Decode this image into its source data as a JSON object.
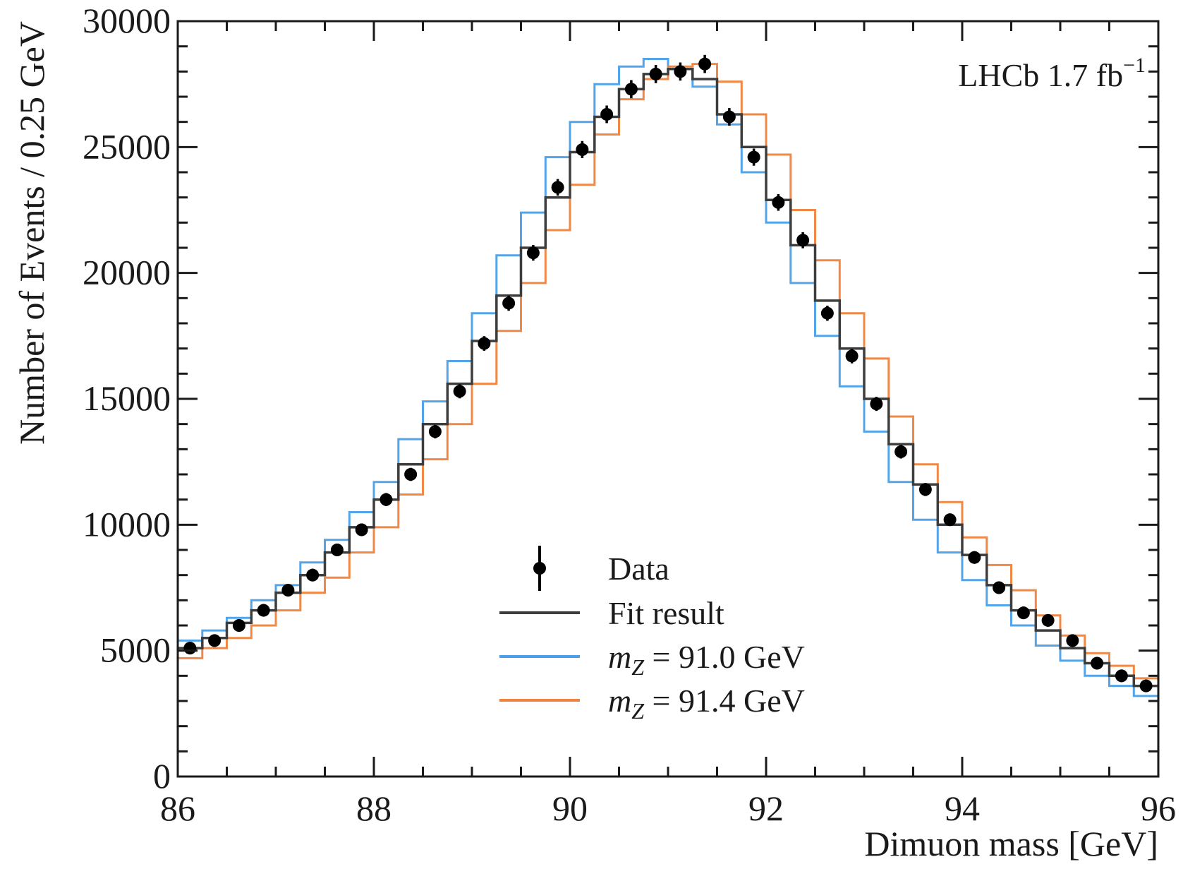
{
  "chart_data": {
    "type": "line",
    "xlabel": "Dimuon mass [GeV]",
    "ylabel": "Number of Events / 0.25 GeV",
    "xlim": [
      86,
      96
    ],
    "ylim": [
      0,
      30000
    ],
    "x_ticks": [
      86,
      88,
      90,
      92,
      94,
      96
    ],
    "y_ticks": [
      0,
      5000,
      10000,
      15000,
      20000,
      25000,
      30000
    ],
    "bin_width": 0.25,
    "grid": false,
    "legend_position": "bottom-center",
    "annotation": {
      "text": "LHCb 1.7 fb",
      "superscript": "−1"
    },
    "legend": [
      {
        "label": "Data",
        "style": "points"
      },
      {
        "label": "Fit result",
        "style": "line"
      },
      {
        "label_italic": "m",
        "label_sub": "Z",
        "label_rest": " = 91.0 GeV",
        "style": "line"
      },
      {
        "label_italic": "m",
        "label_sub": "Z",
        "label_rest": " = 91.4 GeV",
        "style": "line"
      }
    ],
    "bin_edges": [
      86,
      86.25,
      86.5,
      86.75,
      87,
      87.25,
      87.5,
      87.75,
      88,
      88.25,
      88.5,
      88.75,
      89,
      89.25,
      89.5,
      89.75,
      90,
      90.25,
      90.5,
      90.75,
      91,
      91.25,
      91.5,
      91.75,
      92,
      92.25,
      92.5,
      92.75,
      93,
      93.25,
      93.5,
      93.75,
      94,
      94.25,
      94.5,
      94.75,
      95,
      95.25,
      95.5,
      95.75,
      96
    ],
    "series": [
      {
        "name": "Data",
        "type": "points",
        "color": "#000000",
        "x": [
          86.125,
          86.375,
          86.625,
          86.875,
          87.125,
          87.375,
          87.625,
          87.875,
          88.125,
          88.375,
          88.625,
          88.875,
          89.125,
          89.375,
          89.625,
          89.875,
          90.125,
          90.375,
          90.625,
          90.875,
          91.125,
          91.375,
          91.625,
          91.875,
          92.125,
          92.375,
          92.625,
          92.875,
          93.125,
          93.375,
          93.625,
          93.875,
          94.125,
          94.375,
          94.625,
          94.875,
          95.125,
          95.375,
          95.625,
          95.875
        ],
        "values": [
          5100,
          5400,
          6000,
          6600,
          7400,
          8000,
          9000,
          9800,
          11000,
          12000,
          13700,
          15300,
          17200,
          18800,
          20800,
          23400,
          24900,
          26300,
          27300,
          27900,
          28000,
          28300,
          26200,
          24600,
          22800,
          21300,
          18400,
          16700,
          14800,
          12900,
          11400,
          10200,
          8700,
          7500,
          6500,
          6200,
          5400,
          4500,
          4000,
          3600
        ],
        "errors": [
          250,
          250,
          250,
          250,
          250,
          250,
          250,
          250,
          260,
          260,
          270,
          280,
          290,
          300,
          310,
          330,
          340,
          350,
          360,
          360,
          360,
          360,
          350,
          340,
          330,
          320,
          300,
          290,
          280,
          270,
          260,
          250,
          250,
          250,
          250,
          250,
          250,
          250,
          250,
          250
        ]
      },
      {
        "name": "Fit result",
        "type": "step",
        "color": "#3d3d3d",
        "values": [
          5100,
          5500,
          6100,
          6600,
          7300,
          8000,
          8900,
          9900,
          11000,
          12400,
          14000,
          15600,
          17300,
          19100,
          21000,
          23000,
          24800,
          26200,
          27300,
          27900,
          28100,
          27700,
          26300,
          25000,
          22900,
          21100,
          18900,
          17000,
          15000,
          13200,
          11600,
          10000,
          8800,
          7600,
          6600,
          5800,
          5100,
          4500,
          4000,
          3600
        ]
      },
      {
        "name": "m_Z = 91.0 GeV",
        "type": "step",
        "color": "#4a9fe8",
        "values": [
          5400,
          5800,
          6300,
          7000,
          7600,
          8500,
          9400,
          10500,
          11700,
          13400,
          14900,
          16500,
          18400,
          20700,
          22400,
          24600,
          26000,
          27500,
          28200,
          28500,
          28100,
          27400,
          25900,
          24000,
          22000,
          19600,
          17500,
          15500,
          13700,
          11700,
          10200,
          8900,
          7800,
          6800,
          6000,
          5200,
          4600,
          4000,
          3600,
          3200
        ]
      },
      {
        "name": "m_Z = 91.4 GeV",
        "type": "step",
        "color": "#f0823c",
        "values": [
          4700,
          5100,
          5500,
          6000,
          6600,
          7300,
          7900,
          8900,
          9900,
          11200,
          12600,
          14000,
          15600,
          17700,
          19600,
          21700,
          23500,
          25500,
          26900,
          27700,
          28200,
          28300,
          27600,
          26300,
          24700,
          22500,
          20500,
          18400,
          16600,
          14300,
          12400,
          10900,
          9500,
          8400,
          7400,
          6400,
          5600,
          4900,
          4400,
          3900
        ]
      }
    ]
  }
}
